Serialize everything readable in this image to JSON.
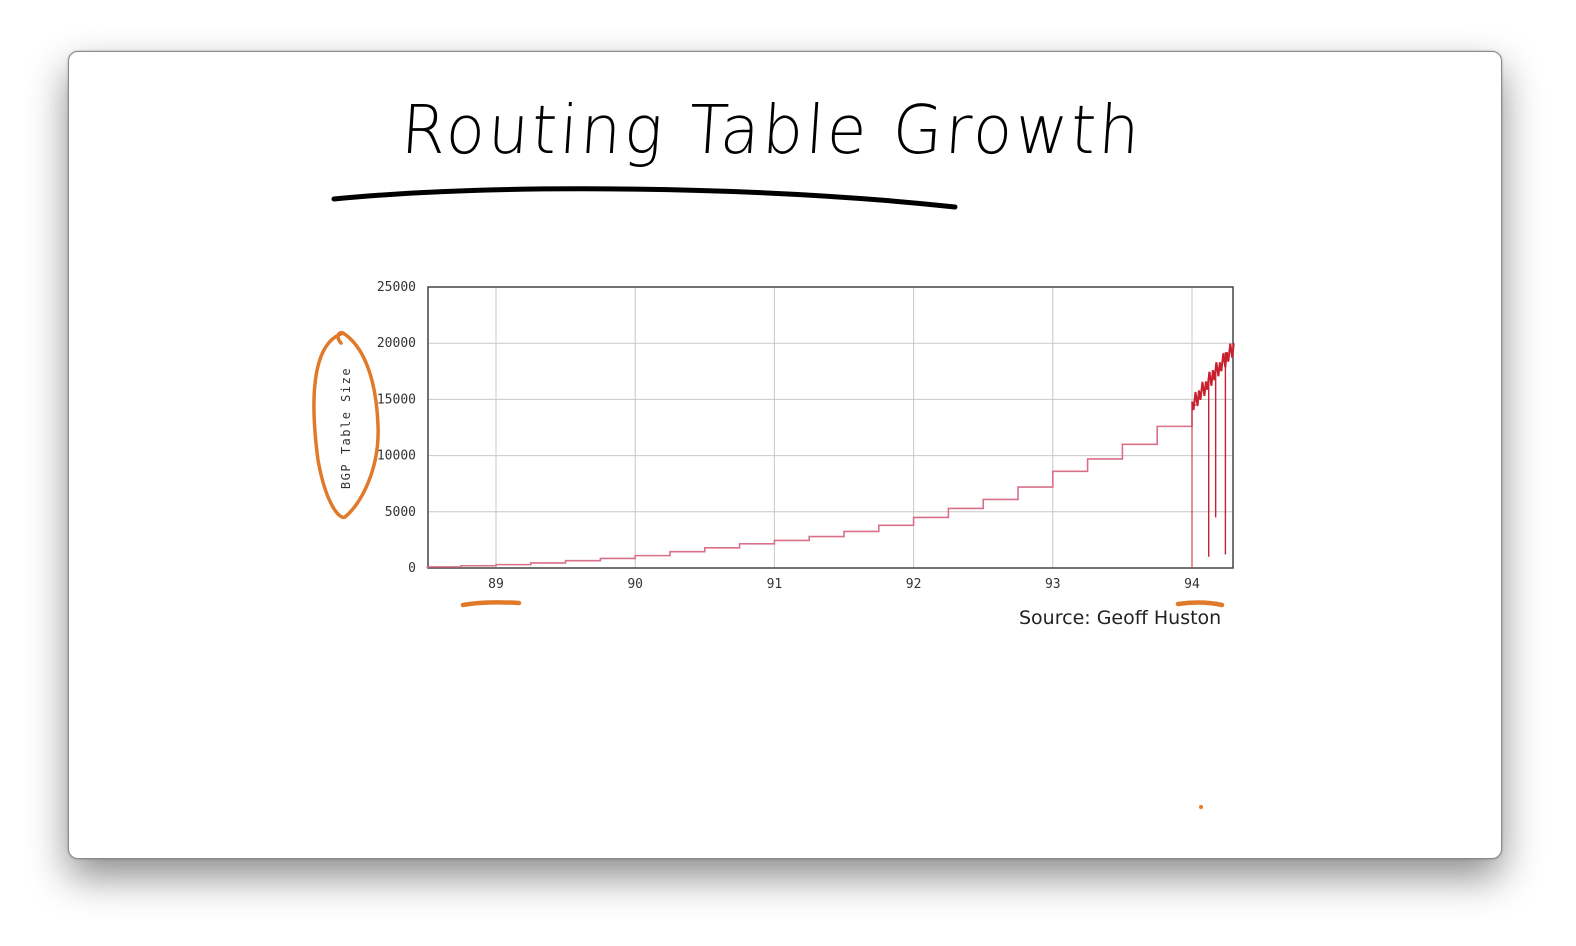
{
  "slide": {
    "title": "Routing Table Growth",
    "source": "Source: Geoff Huston"
  },
  "colors": {
    "series": "#d9708a",
    "spikes": "#c8202e",
    "annotation": "#e07a2a",
    "grid": "#c8c8c8"
  },
  "chart_data": {
    "type": "line",
    "title": "",
    "xlabel": "",
    "ylabel": "BGP Table Size",
    "xlim": [
      88.5,
      94.3
    ],
    "ylim": [
      0,
      25000
    ],
    "xticks": [
      89,
      90,
      91,
      92,
      93,
      94
    ],
    "xtick_labels": [
      "89",
      "90",
      "91",
      "92",
      "93",
      "94"
    ],
    "yticks": [
      0,
      5000,
      10000,
      15000,
      20000,
      25000
    ],
    "ytick_labels": [
      "0",
      "5000",
      "10000",
      "15000",
      "20000",
      "25000"
    ],
    "grid": true,
    "series": [
      {
        "style": "step",
        "x": [
          88.5,
          88.75,
          89.0,
          89.25,
          89.5,
          89.75,
          90.0,
          90.25,
          90.5,
          90.75,
          91.0,
          91.25,
          91.5,
          91.75,
          92.0,
          92.25,
          92.5,
          92.75,
          93.0,
          93.25,
          93.5,
          93.75,
          94.0
        ],
        "y": [
          100,
          200,
          300,
          450,
          650,
          850,
          1100,
          1450,
          1800,
          2150,
          2450,
          2800,
          3250,
          3800,
          4500,
          5300,
          6100,
          7200,
          8600,
          9700,
          11000,
          12600,
          14500
        ]
      },
      {
        "style": "noisy",
        "x": [
          94.0,
          94.05,
          94.1,
          94.15,
          94.2,
          94.25,
          94.3
        ],
        "y": [
          14800,
          15800,
          16600,
          17600,
          18300,
          19200,
          20000
        ],
        "dips": [
          {
            "x": 94.12,
            "y": 1000
          },
          {
            "x": 94.17,
            "y": 4500
          },
          {
            "x": 94.24,
            "y": 1200
          }
        ]
      }
    ]
  }
}
